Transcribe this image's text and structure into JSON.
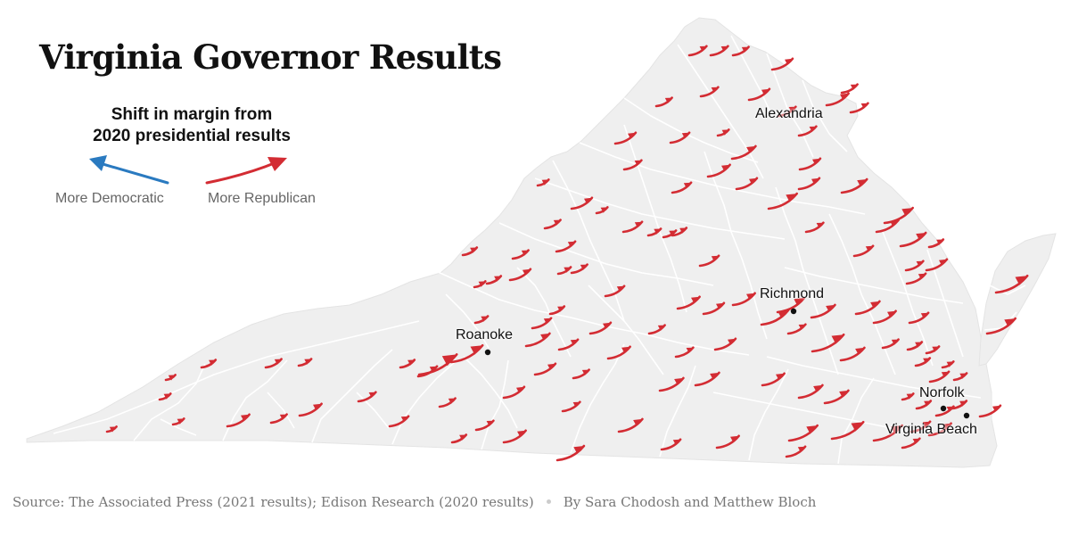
{
  "title": "Virginia Governor Results",
  "legend": {
    "title_line1": "Shift in margin from",
    "title_line2": "2020 presidential results",
    "dem_label": "More Democratic",
    "rep_label": "More Republican",
    "dem_color": "#2a7ac0",
    "rep_color": "#d32c33"
  },
  "cities": {
    "alexandria": "Alexandria",
    "richmond": "Richmond",
    "roanoke": "Roanoke",
    "norfolk": "Norfolk",
    "virginia_beach": "Virginia Beach"
  },
  "footer": {
    "source": "Source: The Associated Press (2021 results); Edison Research (2020 results)",
    "byline": "By Sara Chodosh and Matthew Bloch"
  },
  "colors": {
    "land": "#efefef",
    "county_border": "#ffffff",
    "arrow_red": "#d32c33",
    "arrow_blue": "#2a7ac0"
  }
}
